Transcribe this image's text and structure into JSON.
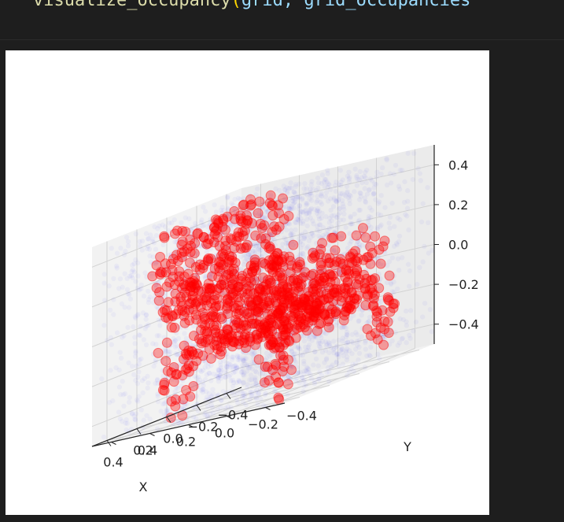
{
  "editor": {
    "code_fn": "visualize_occupancy",
    "code_open": "(",
    "code_args": "grid, grid_occupancies"
  },
  "chart_data": {
    "type": "scatter",
    "projection": "3d",
    "title": "",
    "xlabel": "X",
    "ylabel": "Y",
    "zlabel": "",
    "xlim": [
      -0.5,
      0.5
    ],
    "ylim": [
      -0.5,
      0.5
    ],
    "zlim": [
      -0.5,
      0.5
    ],
    "x_ticks": [
      "−0.4",
      "−0.2",
      "0.0",
      "0.2",
      "0.4"
    ],
    "y_ticks": [
      "−0.4",
      "−0.2",
      "0.0",
      "0.2",
      "0.4"
    ],
    "z_ticks": [
      "−0.4",
      "−0.2",
      "0.0",
      "0.2",
      "0.4"
    ],
    "grid": true,
    "series": [
      {
        "role": "unoccupied grid points",
        "color": "#0000ff",
        "alpha": 0.02,
        "shape": "uniform cube grid filling [-0.5, 0.5]^3"
      },
      {
        "role": "occupied points",
        "color": "#ff0000",
        "alpha": 0.35,
        "shape": "armchair: seat, high back, two arms and four legs"
      }
    ]
  }
}
